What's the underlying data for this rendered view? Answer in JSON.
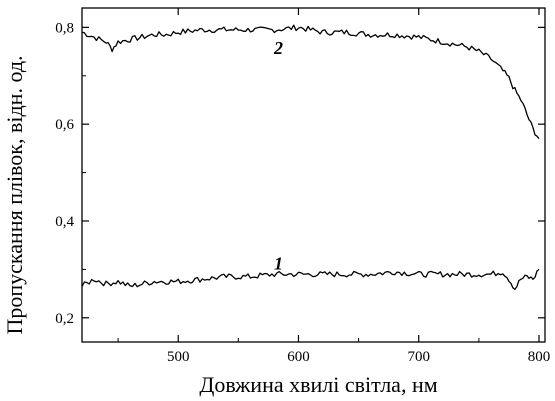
{
  "chart_data": {
    "type": "line",
    "title": "",
    "xlabel": "Довжина хвилі світла, нм",
    "ylabel": "Пропускання плівок, відн. од.",
    "xlim": [
      420,
      805
    ],
    "ylim": [
      0.15,
      0.84
    ],
    "x_ticks": [
      {
        "value": 500,
        "label": "500"
      },
      {
        "value": 600,
        "label": "600"
      },
      {
        "value": 700,
        "label": "700"
      },
      {
        "value": 800,
        "label": "800"
      }
    ],
    "y_ticks": [
      {
        "value": 0.2,
        "label": "0,2"
      },
      {
        "value": 0.4,
        "label": "0,4"
      },
      {
        "value": 0.6,
        "label": "0,6"
      },
      {
        "value": 0.8,
        "label": "0,8"
      }
    ],
    "grid": false,
    "legend": "none",
    "series": [
      {
        "name": "2",
        "label_at": [
          600,
          0.755
        ],
        "x": [
          420,
          430,
          440,
          445,
          450,
          460,
          470,
          480,
          490,
          500,
          520,
          540,
          560,
          580,
          600,
          620,
          640,
          660,
          680,
          700,
          710,
          720,
          730,
          740,
          750,
          760,
          770,
          775,
          780,
          785,
          790,
          795,
          800
        ],
        "y": [
          0.79,
          0.78,
          0.77,
          0.755,
          0.77,
          0.775,
          0.78,
          0.785,
          0.785,
          0.79,
          0.795,
          0.795,
          0.795,
          0.795,
          0.8,
          0.79,
          0.79,
          0.785,
          0.785,
          0.78,
          0.775,
          0.77,
          0.765,
          0.76,
          0.75,
          0.735,
          0.71,
          0.695,
          0.67,
          0.65,
          0.62,
          0.59,
          0.57
        ]
      },
      {
        "name": "1",
        "label_at": [
          600,
          0.31
        ],
        "x": [
          420,
          430,
          440,
          450,
          460,
          470,
          480,
          490,
          500,
          520,
          540,
          560,
          580,
          600,
          620,
          640,
          660,
          680,
          700,
          720,
          740,
          760,
          770,
          775,
          780,
          785,
          790,
          795,
          800
        ],
        "y": [
          0.265,
          0.28,
          0.27,
          0.275,
          0.265,
          0.27,
          0.275,
          0.275,
          0.275,
          0.28,
          0.285,
          0.285,
          0.29,
          0.29,
          0.29,
          0.29,
          0.29,
          0.295,
          0.29,
          0.29,
          0.29,
          0.29,
          0.295,
          0.28,
          0.26,
          0.28,
          0.285,
          0.28,
          0.3
        ]
      }
    ]
  }
}
